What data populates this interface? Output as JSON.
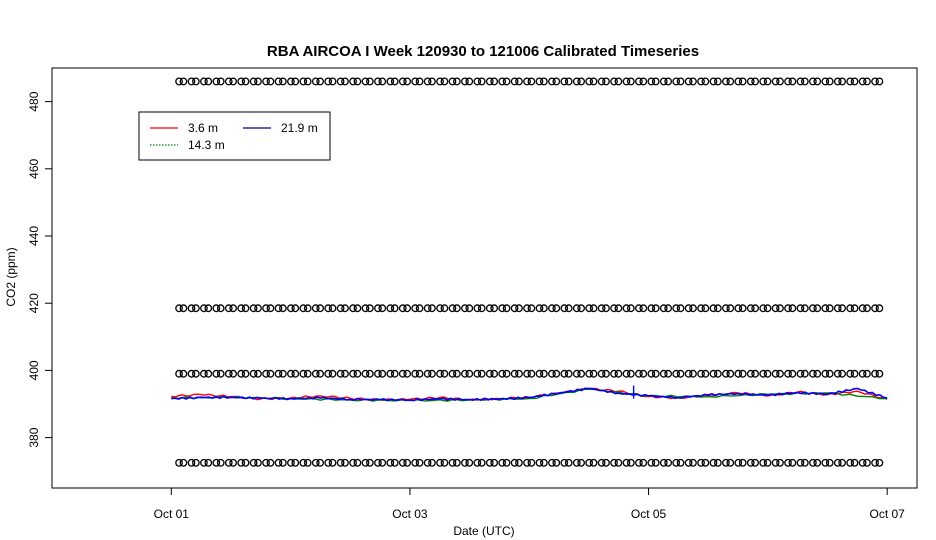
{
  "chart_data": {
    "type": "line",
    "title": "RBA AIRCOA I  Week 120930 to 121006  Calibrated Timeseries",
    "xlabel": "Date (UTC)",
    "ylabel": "CO2 (ppm)",
    "xlim": [
      "2012-09-30T00:00",
      "2012-10-07T06:00"
    ],
    "ylim": [
      365,
      490
    ],
    "x_ticks": [
      "Oct 01",
      "Oct 03",
      "Oct 05",
      "Oct 07"
    ],
    "x_tick_dates": [
      "2012-10-01",
      "2012-10-03",
      "2012-10-05",
      "2012-10-07"
    ],
    "y_ticks": [
      380,
      400,
      420,
      440,
      460,
      480
    ],
    "grid": false,
    "legend": {
      "position": "top-left",
      "columns": 2
    },
    "series": [
      {
        "name": "3.6 m",
        "color": "#ff0000",
        "kind": "line",
        "x": [
          "2012-10-01T00:00",
          "2012-10-01T06:00",
          "2012-10-01T12:00",
          "2012-10-01T18:00",
          "2012-10-02T00:00",
          "2012-10-02T06:00",
          "2012-10-02T12:00",
          "2012-10-02T18:00",
          "2012-10-03T00:00",
          "2012-10-03T06:00",
          "2012-10-03T12:00",
          "2012-10-03T18:00",
          "2012-10-04T00:00",
          "2012-10-04T06:00",
          "2012-10-04T12:00",
          "2012-10-04T18:00",
          "2012-10-05T00:00",
          "2012-10-05T06:00",
          "2012-10-05T12:00",
          "2012-10-05T18:00",
          "2012-10-06T00:00",
          "2012-10-06T06:00",
          "2012-10-06T12:00",
          "2012-10-06T18:00",
          "2012-10-07T00:00"
        ],
        "y": [
          392.3,
          392.8,
          392.2,
          391.5,
          391.8,
          392.4,
          391.7,
          391.2,
          391.4,
          391.9,
          391.3,
          391.6,
          392.0,
          393.2,
          394.6,
          393.8,
          392.2,
          391.8,
          392.5,
          393.3,
          392.4,
          393.6,
          392.8,
          393.8,
          391.4
        ]
      },
      {
        "name": "14.3 m",
        "color": "#008000",
        "kind": "line",
        "x": [
          "2012-10-01T00:00",
          "2012-10-01T12:00",
          "2012-10-02T00:00",
          "2012-10-02T12:00",
          "2012-10-03T00:00",
          "2012-10-03T12:00",
          "2012-10-04T00:00",
          "2012-10-04T12:00",
          "2012-10-05T00:00",
          "2012-10-05T12:00",
          "2012-10-06T00:00",
          "2012-10-06T12:00",
          "2012-10-07T00:00"
        ],
        "y": [
          391.8,
          392.0,
          391.6,
          391.2,
          391.0,
          391.2,
          391.6,
          394.4,
          392.4,
          392.2,
          392.9,
          393.3,
          391.6
        ]
      },
      {
        "name": "21.9 m",
        "color": "#0000ff",
        "kind": "line",
        "x": [
          "2012-10-01T00:00",
          "2012-10-01T06:00",
          "2012-10-01T12:00",
          "2012-10-01T18:00",
          "2012-10-02T00:00",
          "2012-10-02T06:00",
          "2012-10-02T12:00",
          "2012-10-02T18:00",
          "2012-10-03T00:00",
          "2012-10-03T06:00",
          "2012-10-03T12:00",
          "2012-10-03T18:00",
          "2012-10-04T00:00",
          "2012-10-04T06:00",
          "2012-10-04T12:00",
          "2012-10-04T18:00",
          "2012-10-05T00:00",
          "2012-10-05T06:00",
          "2012-10-05T12:00",
          "2012-10-05T18:00",
          "2012-10-06T00:00",
          "2012-10-06T06:00",
          "2012-10-06T12:00",
          "2012-10-06T18:00",
          "2012-10-07T00:00"
        ],
        "y": [
          391.6,
          391.9,
          392.0,
          391.7,
          391.6,
          391.8,
          391.4,
          391.3,
          391.2,
          391.5,
          391.3,
          391.5,
          391.9,
          393.3,
          394.6,
          393.2,
          392.4,
          391.9,
          392.7,
          393.1,
          392.6,
          393.4,
          392.9,
          394.6,
          391.8
        ]
      },
      {
        "kind": "markers",
        "color": "#000000",
        "marker": "open-circle",
        "levels": [
          486,
          418.5,
          399,
          372.5
        ],
        "x_start": "2012-10-01T02:00",
        "x_end": "2012-10-06T23:00",
        "interval_hours": 2.5
      }
    ]
  }
}
